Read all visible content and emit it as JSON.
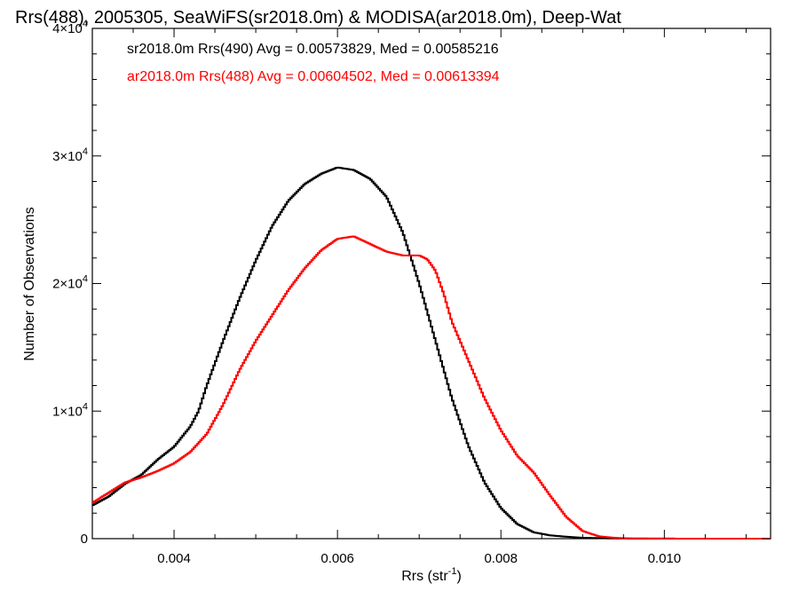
{
  "chart_data": {
    "type": "line",
    "step": true,
    "title": "Rrs(488), 2005305, SeaWiFS(sr2018.0m) & MODISA(ar2018.0m), Deep-Wat",
    "xlabel": "Rrs (str",
    "xlabel_sup": "-1",
    "xlabel_end": ")",
    "ylabel": "Number of Observations",
    "xlim": [
      0.003,
      0.0113
    ],
    "ylim": [
      0,
      40000
    ],
    "xticks": [
      {
        "value": 0.004,
        "label": "0.004"
      },
      {
        "value": 0.006,
        "label": "0.006"
      },
      {
        "value": 0.008,
        "label": "0.008"
      },
      {
        "value": 0.01,
        "label": "0.010"
      }
    ],
    "yticks": [
      {
        "value": 0,
        "base": "0",
        "sup": ""
      },
      {
        "value": 10000,
        "base": "1×10",
        "sup": "4"
      },
      {
        "value": 20000,
        "base": "2×10",
        "sup": "4"
      },
      {
        "value": 30000,
        "base": "3×10",
        "sup": "4"
      },
      {
        "value": 40000,
        "base": "4×10",
        "sup": "4"
      }
    ],
    "grid": false,
    "legend_position": "top-left",
    "series": [
      {
        "name": "sr2018.0m Rrs(490) Avg = 0.00573829, Med = 0.00585216",
        "color": "#000000",
        "points": [
          [
            0.003,
            2600
          ],
          [
            0.0032,
            3300
          ],
          [
            0.0034,
            4300
          ],
          [
            0.0036,
            5000
          ],
          [
            0.0038,
            6200
          ],
          [
            0.004,
            7200
          ],
          [
            0.0042,
            8800
          ],
          [
            0.0043,
            10000
          ],
          [
            0.0044,
            12000
          ],
          [
            0.0046,
            15500
          ],
          [
            0.0048,
            18800
          ],
          [
            0.005,
            21800
          ],
          [
            0.0052,
            24500
          ],
          [
            0.0054,
            26500
          ],
          [
            0.0056,
            27800
          ],
          [
            0.0058,
            28600
          ],
          [
            0.006,
            29100
          ],
          [
            0.0061,
            29000
          ],
          [
            0.0062,
            28900
          ],
          [
            0.0064,
            28200
          ],
          [
            0.0066,
            26800
          ],
          [
            0.0068,
            24000
          ],
          [
            0.007,
            20000
          ],
          [
            0.0072,
            15500
          ],
          [
            0.0074,
            11000
          ],
          [
            0.0076,
            7300
          ],
          [
            0.0078,
            4400
          ],
          [
            0.008,
            2400
          ],
          [
            0.0082,
            1150
          ],
          [
            0.0084,
            500
          ],
          [
            0.0086,
            260
          ],
          [
            0.0088,
            150
          ],
          [
            0.009,
            70
          ],
          [
            0.0093,
            30
          ],
          [
            0.0096,
            10
          ],
          [
            0.01,
            5
          ],
          [
            0.0113,
            0
          ]
        ]
      },
      {
        "name": "ar2018.0m Rrs(488) Avg = 0.00604502, Med = 0.00613394",
        "color": "#ff0000",
        "points": [
          [
            0.003,
            2800
          ],
          [
            0.0032,
            3600
          ],
          [
            0.0034,
            4400
          ],
          [
            0.0036,
            4800
          ],
          [
            0.0038,
            5300
          ],
          [
            0.004,
            5900
          ],
          [
            0.0042,
            6800
          ],
          [
            0.0044,
            8200
          ],
          [
            0.0046,
            10500
          ],
          [
            0.0048,
            13200
          ],
          [
            0.005,
            15500
          ],
          [
            0.0052,
            17500
          ],
          [
            0.0054,
            19500
          ],
          [
            0.0056,
            21200
          ],
          [
            0.0058,
            22600
          ],
          [
            0.006,
            23500
          ],
          [
            0.0062,
            23700
          ],
          [
            0.0064,
            23100
          ],
          [
            0.0066,
            22500
          ],
          [
            0.0068,
            22200
          ],
          [
            0.007,
            22200
          ],
          [
            0.0071,
            21900
          ],
          [
            0.0072,
            21000
          ],
          [
            0.0073,
            19200
          ],
          [
            0.0074,
            17000
          ],
          [
            0.0076,
            14000
          ],
          [
            0.0078,
            11000
          ],
          [
            0.008,
            8500
          ],
          [
            0.0082,
            6500
          ],
          [
            0.0084,
            5200
          ],
          [
            0.0086,
            3400
          ],
          [
            0.0088,
            1700
          ],
          [
            0.009,
            600
          ],
          [
            0.0092,
            180
          ],
          [
            0.0094,
            60
          ],
          [
            0.0096,
            20
          ],
          [
            0.01,
            5
          ],
          [
            0.0113,
            0
          ]
        ]
      }
    ]
  }
}
